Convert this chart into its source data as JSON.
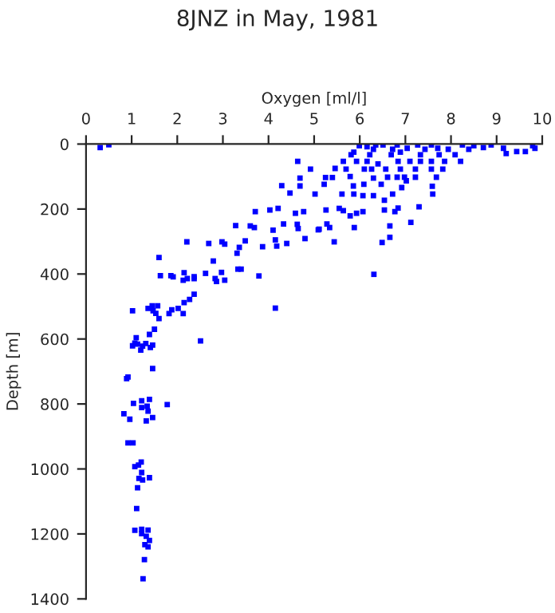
{
  "chart_data": {
    "type": "scatter",
    "title": "8JNZ in May, 1981",
    "xlabel": "Oxygen [ml/l]",
    "ylabel": "Depth [m]",
    "xlim": [
      0,
      10
    ],
    "xticks": [
      0,
      1,
      2,
      3,
      4,
      5,
      6,
      7,
      8,
      9,
      10
    ],
    "ylim": [
      1400,
      0
    ],
    "yticks": [
      0,
      200,
      400,
      600,
      800,
      1000,
      1200,
      1400
    ],
    "marker": "square",
    "grid": false,
    "legend": false,
    "series": [
      {
        "color": "#0000ff",
        "x": [
          0.31,
          0.5,
          4.64,
          4.92,
          4.69,
          4.69,
          4.29,
          4.47,
          5.02,
          3.71,
          4.03,
          4.21,
          4.59,
          4.77,
          4.63,
          4.65,
          4.33,
          4.1,
          4.15,
          4.18,
          4.4,
          4.8,
          5.09,
          3.28,
          3.6,
          3.69,
          3.49,
          3.36,
          3.31,
          3.87,
          2.69,
          2.21,
          2.98,
          3.04,
          1.6,
          2.79,
          2.62,
          2.97,
          3.33,
          3.4,
          3.79,
          1.63,
          1.86,
          1.91,
          2.15,
          2.13,
          2.22,
          2.37,
          2.37,
          2.83,
          2.86,
          3.04,
          2.37,
          2.27,
          2.15,
          2.02,
          1.88,
          1.82,
          2.13,
          4.15,
          1.02,
          1.36,
          1.45,
          1.57,
          1.47,
          1.53,
          1.6,
          1.5,
          1.39,
          2.51,
          1.1,
          1.07,
          1.02,
          1.13,
          1.2,
          1.31,
          1.41,
          1.46,
          1.24,
          1.46,
          0.92,
          0.89,
          1.04,
          1.22,
          1.39,
          1.78,
          1.22,
          1.34,
          1.36,
          0.83,
          0.96,
          1.32,
          1.46,
          0.92,
          1.03,
          1.07,
          1.21,
          1.15,
          1.22,
          1.16,
          1.24,
          1.39,
          1.13,
          1.11,
          1.07,
          1.22,
          1.36,
          1.22,
          1.32,
          1.39,
          1.29,
          1.36,
          1.28,
          1.25,
          5.87,
          5.99,
          6.16,
          6.3,
          6.35,
          6.51,
          6.72,
          6.82,
          6.89,
          7.04,
          7.27,
          7.43,
          7.57,
          7.71,
          7.94,
          8.25,
          8.39,
          8.5,
          8.71,
          8.88,
          9.15,
          9.21,
          9.44,
          9.63,
          9.79,
          9.84,
          5.81,
          6.22,
          6.69,
          7.33,
          7.74,
          8.09,
          5.64,
          5.93,
          6.16,
          6.4,
          6.84,
          7.1,
          7.33,
          7.57,
          7.86,
          8.21,
          5.46,
          5.7,
          6.1,
          6.26,
          6.57,
          6.89,
          7.22,
          7.57,
          7.82,
          5.25,
          5.4,
          5.79,
          6.3,
          6.61,
          6.82,
          6.98,
          7.22,
          7.68,
          5.22,
          5.86,
          6.09,
          6.47,
          6.92,
          7.02,
          7.59,
          5.61,
          5.87,
          6.07,
          6.3,
          6.72,
          7.6,
          6.54,
          5.26,
          5.55,
          5.64,
          5.79,
          5.93,
          6.07,
          6.54,
          6.77,
          6.84,
          7.3,
          7.12,
          5.11,
          5.28,
          5.34,
          5.88,
          6.66,
          5.44,
          6.49,
          6.66,
          6.31
        ],
        "values": [
          11,
          2,
          53,
          77,
          105,
          129,
          128,
          151,
          154,
          208,
          203,
          198,
          213,
          208,
          247,
          260,
          246,
          265,
          295,
          314,
          306,
          291,
          264,
          251,
          252,
          257,
          298,
          318,
          336,
          316,
          306,
          301,
          301,
          308,
          349,
          360,
          398,
          395,
          385,
          385,
          406,
          405,
          405,
          409,
          396,
          419,
          414,
          408,
          414,
          414,
          423,
          419,
          462,
          478,
          488,
          506,
          510,
          522,
          522,
          505,
          513,
          506,
          498,
          498,
          513,
          521,
          537,
          570,
          586,
          606,
          596,
          613,
          621,
          616,
          634,
          614,
          626,
          619,
          622,
          691,
          717,
          722,
          798,
          790,
          786,
          802,
          811,
          807,
          822,
          830,
          847,
          852,
          842,
          920,
          920,
          993,
          979,
          988,
          1011,
          1029,
          1034,
          1027,
          1058,
          1122,
          1189,
          1186,
          1188,
          1199,
          1207,
          1220,
          1233,
          1240,
          1279,
          1338,
          25,
          5,
          8,
          16,
          3,
          3,
          16,
          3,
          25,
          13,
          3,
          16,
          3,
          13,
          16,
          3,
          16,
          5,
          11,
          3,
          13,
          29,
          23,
          23,
          5,
          13,
          33,
          33,
          33,
          33,
          33,
          33,
          53,
          53,
          53,
          61,
          53,
          53,
          53,
          53,
          53,
          53,
          75,
          77,
          77,
          77,
          77,
          77,
          77,
          77,
          77,
          103,
          103,
          100,
          105,
          102,
          102,
          102,
          102,
          102,
          124,
          129,
          124,
          124,
          134,
          113,
          130,
          154,
          154,
          159,
          159,
          154,
          154,
          173,
          203,
          198,
          205,
          221,
          213,
          208,
          203,
          208,
          197,
          193,
          241,
          262,
          246,
          257,
          257,
          252,
          301,
          303,
          287,
          401
        ]
      }
    ]
  }
}
